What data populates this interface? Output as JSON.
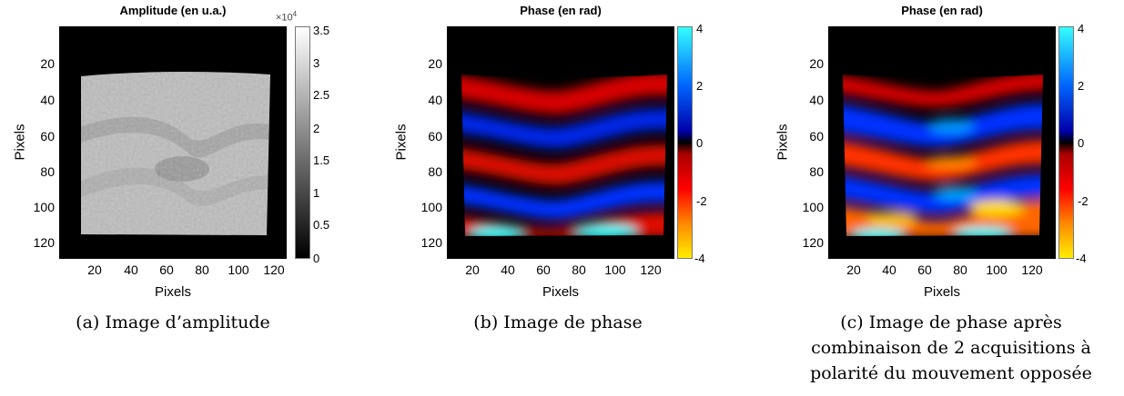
{
  "panels": [
    {
      "id": "a",
      "title": "Amplitude (en u.a.)",
      "xlabel": "Pixels",
      "ylabel": "Pixels",
      "yticks": [
        "20",
        "40",
        "60",
        "80",
        "100",
        "120"
      ],
      "xticks": [
        "20",
        "40",
        "60",
        "80",
        "100",
        "120"
      ],
      "colorbar_ticks": [
        "3.5",
        "3",
        "2.5",
        "2",
        "1.5",
        "1",
        "0.5",
        "0"
      ],
      "colorbar_exponent_base": "×10",
      "colorbar_exponent_power": "4",
      "colormap": "gray",
      "caption": "(a) Image d’amplitude"
    },
    {
      "id": "b",
      "title": "Phase (en rad)",
      "xlabel": "Pixels",
      "ylabel": "Pixels",
      "yticks": [
        "20",
        "40",
        "60",
        "80",
        "100",
        "120"
      ],
      "xticks": [
        "20",
        "40",
        "60",
        "80",
        "100",
        "120"
      ],
      "colorbar_ticks": [
        "4",
        "2",
        "0",
        "-2",
        "-4"
      ],
      "colormap": "phase",
      "caption": "(b) Image de phase"
    },
    {
      "id": "c",
      "title": "Phase (en rad)",
      "xlabel": "Pixels",
      "ylabel": "Pixels",
      "yticks": [
        "20",
        "40",
        "60",
        "80",
        "100",
        "120"
      ],
      "xticks": [
        "20",
        "40",
        "60",
        "80",
        "100",
        "120"
      ],
      "colorbar_ticks": [
        "4",
        "2",
        "0",
        "-2",
        "-4"
      ],
      "colormap": "phase",
      "caption_lines": [
        "(c) Image de phase après",
        "combinaison de 2 acquisitions à",
        "polarité du mouvement opposée"
      ]
    }
  ],
  "colors": {
    "background": "#000000",
    "phase_positive_high": "#33ffff",
    "phase_positive_mid": "#0033ff",
    "phase_negative_mid": "#e00000",
    "phase_negative_high": "#ffee00",
    "amplitude_tissue": "#bdbdbd"
  }
}
